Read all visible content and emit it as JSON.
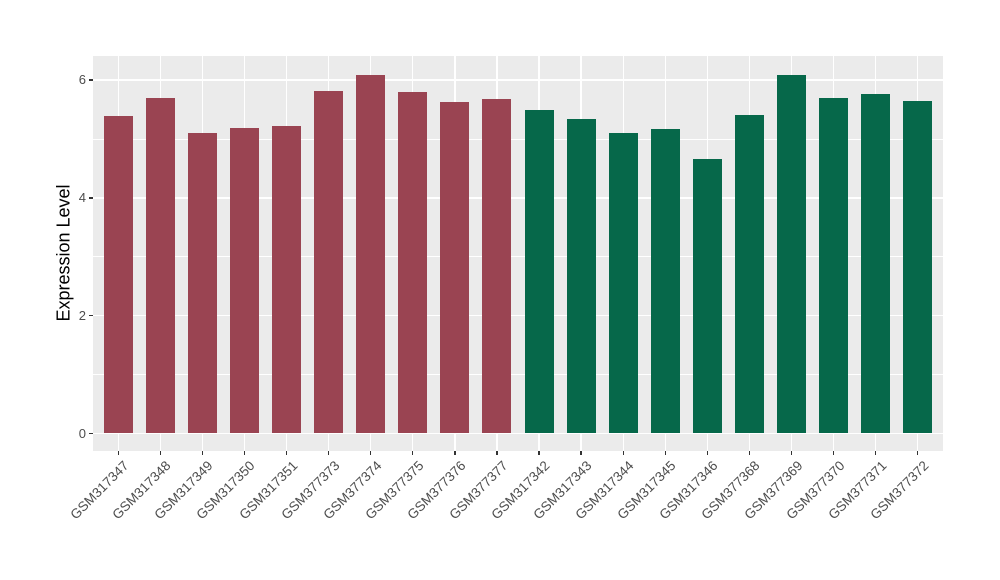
{
  "chart_data": {
    "type": "bar",
    "title": "",
    "xlabel": "",
    "ylabel": "Expression Level",
    "ylim": [
      0,
      6.41
    ],
    "y_major_ticks": [
      0,
      2,
      4,
      6
    ],
    "y_minor_gridlines": [
      1,
      3,
      5
    ],
    "grid": true,
    "legend_position": "none",
    "categories": [
      "GSM317347",
      "GSM317348",
      "GSM317349",
      "GSM317350",
      "GSM317351",
      "GSM377373",
      "GSM377374",
      "GSM377375",
      "GSM377376",
      "GSM377377",
      "GSM317342",
      "GSM317343",
      "GSM317344",
      "GSM317345",
      "GSM317346",
      "GSM377368",
      "GSM377369",
      "GSM377370",
      "GSM377371",
      "GSM377372"
    ],
    "values": [
      5.39,
      5.69,
      5.1,
      5.19,
      5.22,
      5.81,
      6.08,
      5.79,
      5.62,
      5.68,
      5.49,
      5.34,
      5.11,
      5.17,
      4.66,
      5.41,
      6.08,
      5.69,
      5.77,
      5.65
    ],
    "groups": [
      0,
      0,
      0,
      0,
      0,
      0,
      0,
      0,
      0,
      0,
      1,
      1,
      1,
      1,
      1,
      1,
      1,
      1,
      1,
      1
    ],
    "group_colors": [
      "#9A4452",
      "#06684A"
    ],
    "colors": {
      "panel_background": "#EBEBEB",
      "gridline": "#FFFFFF",
      "axis_text": "#4D4D4D",
      "axis_title": "#000000",
      "tick_mark": "#333333",
      "page_background": "#FFFFFF"
    }
  }
}
